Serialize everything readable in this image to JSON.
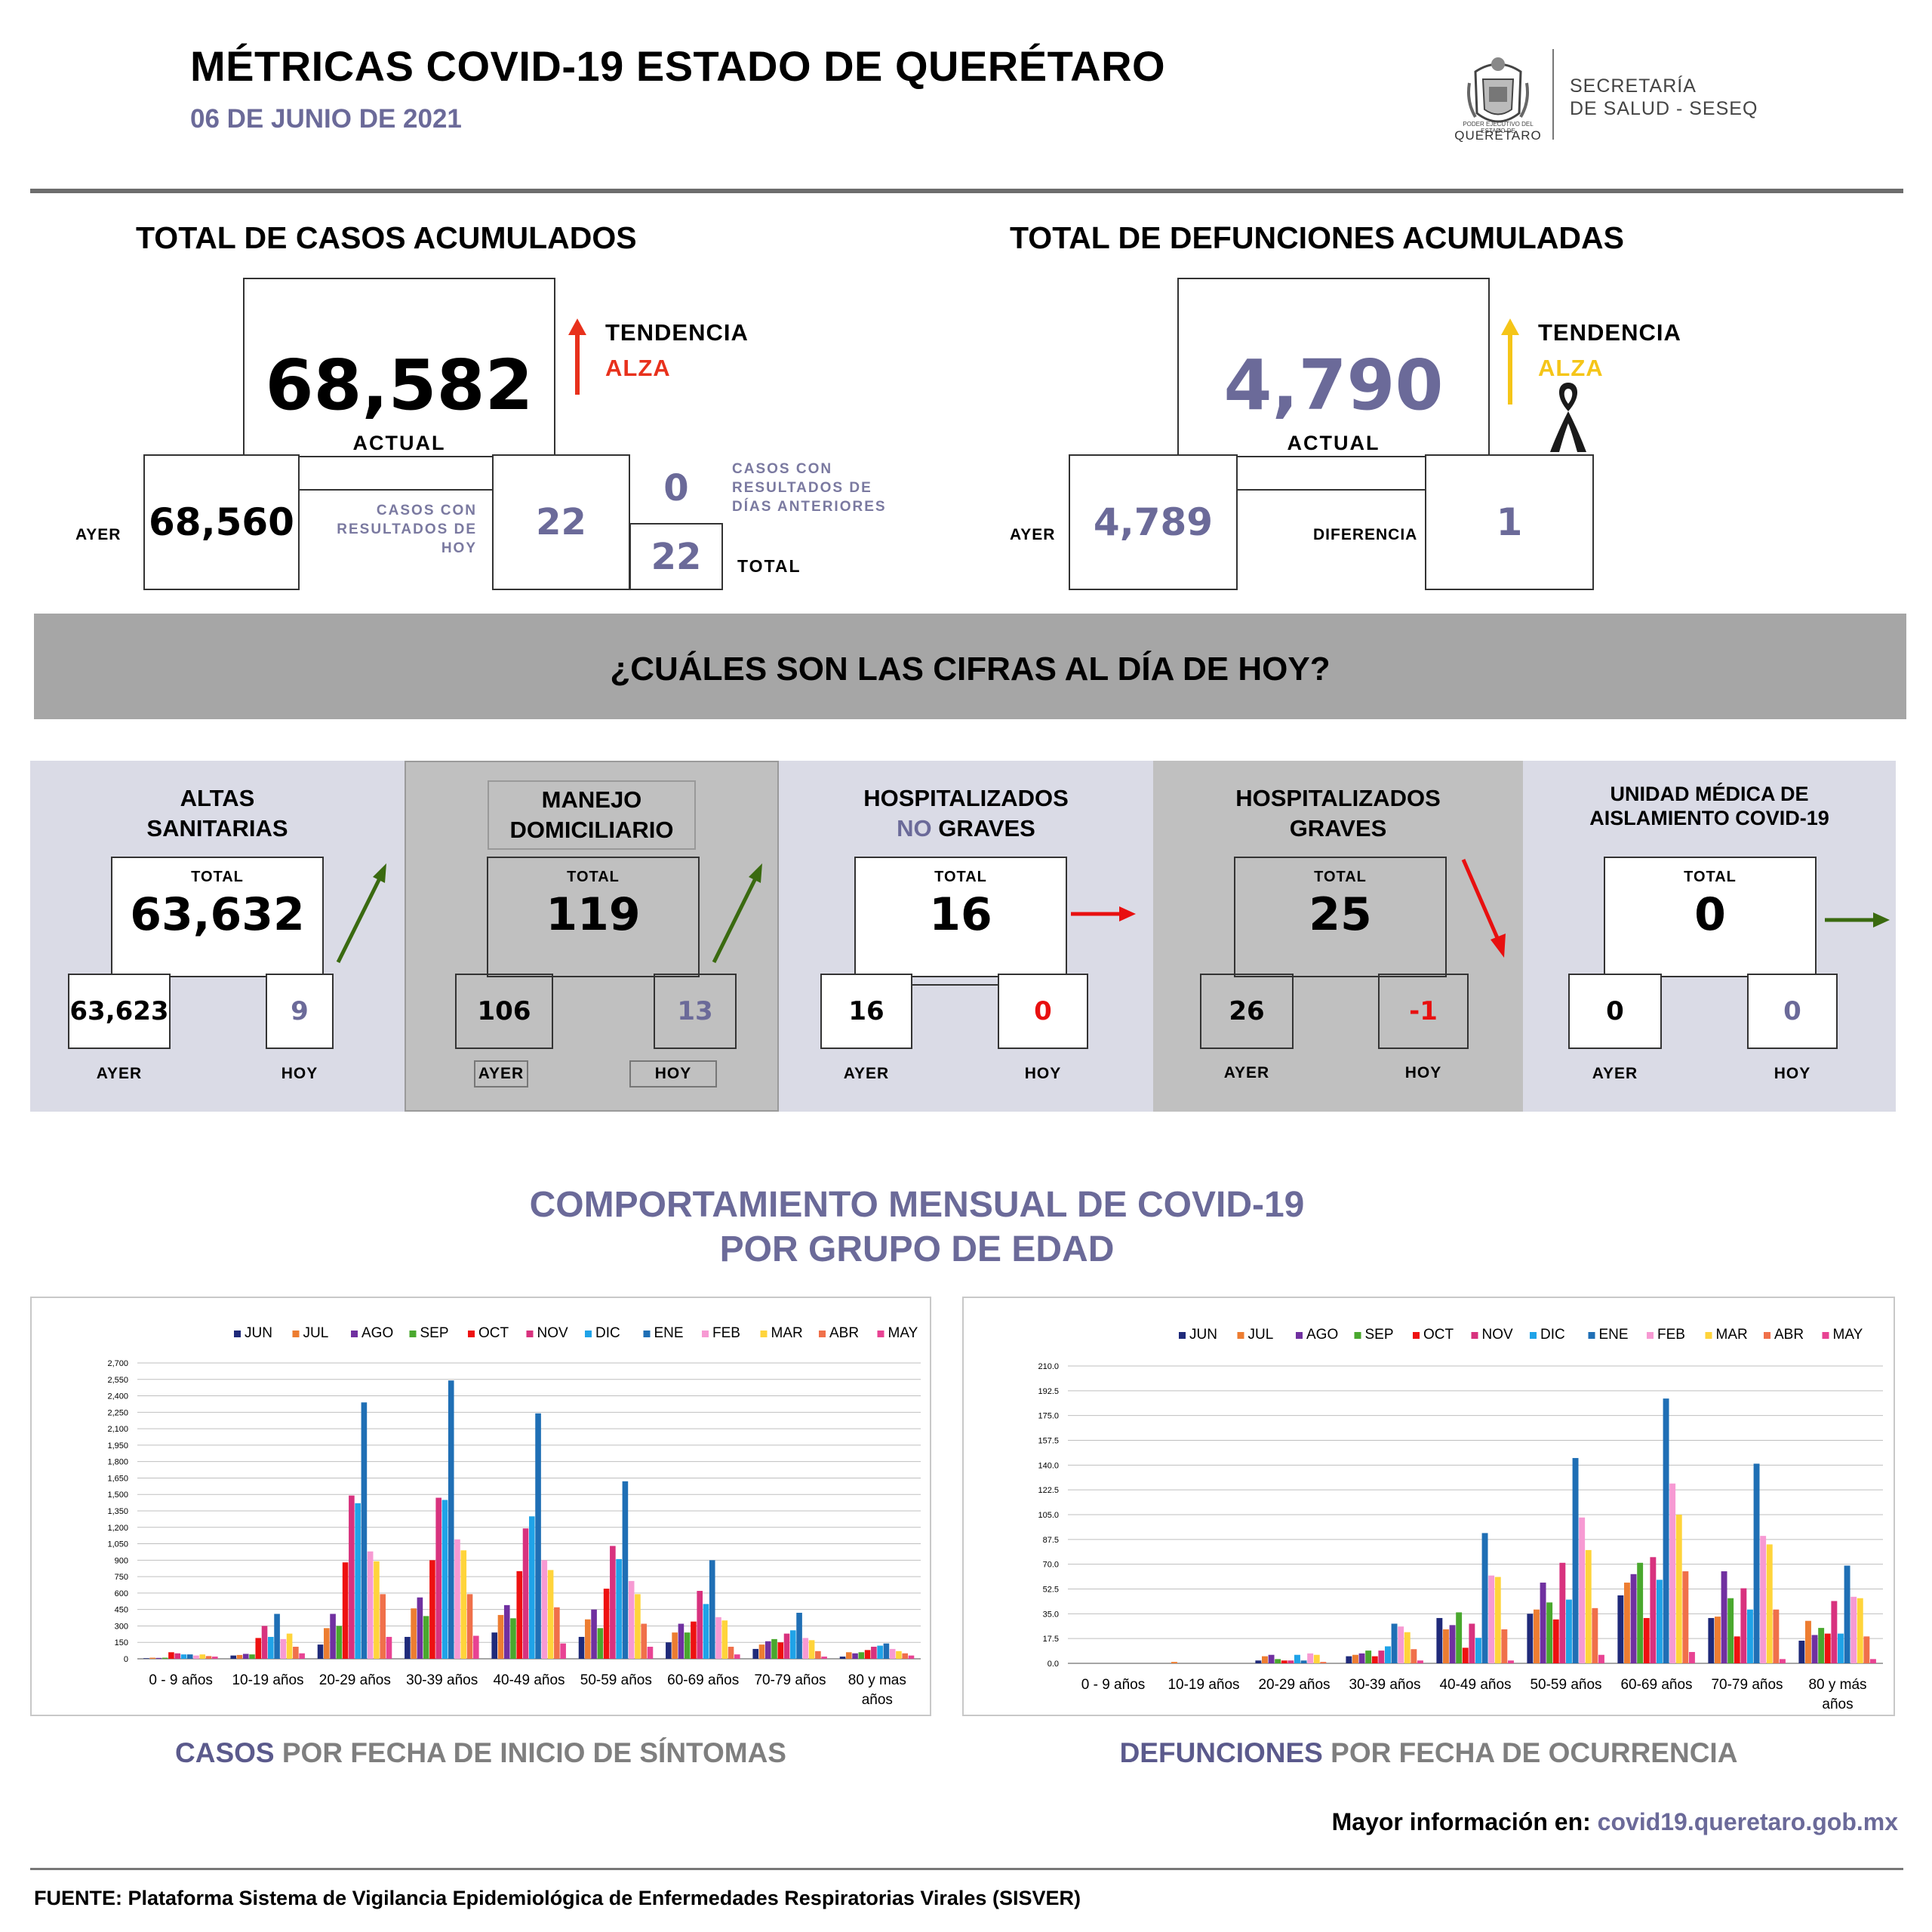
{
  "header": {
    "title": "MÉTRICAS COVID-19 ESTADO DE QUERÉTARO",
    "date": "06 DE JUNIO DE 2021",
    "logo_small": "PODER EJECUTIVO DEL ESTADO DE",
    "logo_state": "QUERÉTARO",
    "secretaria_line1": "SECRETARÍA",
    "secretaria_line2": "DE SALUD - SESEQ"
  },
  "casos": {
    "title": "TOTAL DE CASOS ACUMULADOS",
    "actual": "68,582",
    "actual_label": "ACTUAL",
    "tendencia_label": "TENDENCIA",
    "tendencia_value": "ALZA",
    "ayer_label": "AYER",
    "ayer": "68,560",
    "hoy_label": "CASOS CON RESULTADOS DE HOY",
    "hoy": "22",
    "anteriores_label": "CASOS CON RESULTADOS DE DÍAS ANTERIORES",
    "anteriores": "0",
    "total": "22",
    "total_label": "TOTAL",
    "trend_color": "#e8311c"
  },
  "defunciones": {
    "title": "TOTAL DE DEFUNCIONES ACUMULADAS",
    "actual": "4,790",
    "actual_label": "ACTUAL",
    "tendencia_label": "TENDENCIA",
    "tendencia_value": "ALZA",
    "ayer_label": "AYER",
    "ayer": "4,789",
    "diferencia_label": "DIFERENCIA",
    "diferencia": "1",
    "trend_color": "#f5c518"
  },
  "banner": "¿CUÁLES SON LAS CIFRAS AL DÍA DE HOY?",
  "panels": [
    {
      "title1": "ALTAS",
      "title2": "SANITARIAS",
      "total_label": "TOTAL",
      "total": "63,632",
      "ayer": "63,623",
      "hoy": "9",
      "ayer_label": "AYER",
      "hoy_label": "HOY"
    },
    {
      "title1": "MANEJO",
      "title2": "DOMICILIARIO",
      "total_label": "TOTAL",
      "total": "119",
      "ayer": "106",
      "hoy": "13",
      "ayer_label": "AYER",
      "hoy_label": "HOY"
    },
    {
      "title1": "HOSPITALIZADOS",
      "title2a": "NO",
      "title2b": " GRAVES",
      "total_label": "TOTAL",
      "total": "16",
      "ayer": "16",
      "hoy": "0",
      "ayer_label": "AYER",
      "hoy_label": "HOY"
    },
    {
      "title1": "HOSPITALIZADOS",
      "title2": "GRAVES",
      "total_label": "TOTAL",
      "total": "25",
      "ayer": "26",
      "hoy": "-1",
      "ayer_label": "AYER",
      "hoy_label": "HOY"
    },
    {
      "title1": "UNIDAD MÉDICA DE",
      "title2": "AISLAMIENTO COVID-19",
      "total_label": "TOTAL",
      "total": "0",
      "ayer": "0",
      "hoy": "0",
      "ayer_label": "AYER",
      "hoy_label": "HOY"
    }
  ],
  "section": {
    "title1": "COMPORTAMIENTO MENSUAL DE COVID-19",
    "title2": "POR GRUPO DE EDAD"
  },
  "captions": {
    "casos_a": "CASOS",
    "casos_b": " POR FECHA DE INICIO DE SÍNTOMAS",
    "def_a": "DEFUNCIONES",
    "def_b": " POR FECHA DE OCURRENCIA"
  },
  "more_info": {
    "label": "Mayor información en:",
    "url": "covid19.queretaro.gob.mx"
  },
  "fuente": "FUENTE: Plataforma Sistema  de Vigilancia Epidemiológica de Enfermedades Respiratorias Virales (SISVER)",
  "colors": {
    "series": [
      "#1f2a7a",
      "#ed7d31",
      "#7030a0",
      "#4aa82e",
      "#ee1111",
      "#d8327e",
      "#1fa3e8",
      "#1f6fb5",
      "#f79ad3",
      "#ffd43b",
      "#f0704a",
      "#e84393"
    ],
    "arrow_up": "#3a6a10",
    "arrow_red": "#e81010",
    "arrow_green": "#3a6a10"
  },
  "chart_data": [
    {
      "type": "bar",
      "title": "CASOS POR FECHA DE INICIO DE SÍNTOMAS",
      "categories": [
        "0 - 9 años",
        "10-19 años",
        "20-29 años",
        "30-39 años",
        "40-49 años",
        "50-59 años",
        "60-69 años",
        "70-79 años",
        "80 y mas años"
      ],
      "ylim": [
        0,
        2700
      ],
      "yticks": [
        "0",
        "150",
        "300",
        "450",
        "600",
        "750",
        "900",
        "1,050",
        "1,200",
        "1,350",
        "1,500",
        "1,650",
        "1,800",
        "1,950",
        "2,100",
        "2,250",
        "2,400",
        "2,550",
        "2,700"
      ],
      "series": [
        {
          "name": "JUN",
          "values": [
            5,
            30,
            130,
            200,
            240,
            200,
            150,
            90,
            20
          ]
        },
        {
          "name": "JUL",
          "values": [
            10,
            35,
            280,
            460,
            400,
            360,
            240,
            130,
            60
          ]
        },
        {
          "name": "AGO",
          "values": [
            8,
            45,
            410,
            560,
            490,
            450,
            320,
            160,
            50
          ]
        },
        {
          "name": "SEP",
          "values": [
            10,
            40,
            300,
            390,
            370,
            280,
            240,
            180,
            60
          ]
        },
        {
          "name": "OCT",
          "values": [
            60,
            190,
            880,
            900,
            800,
            640,
            340,
            150,
            80
          ]
        },
        {
          "name": "NOV",
          "values": [
            50,
            300,
            1490,
            1470,
            1190,
            1030,
            620,
            230,
            110
          ]
        },
        {
          "name": "DIC",
          "values": [
            40,
            200,
            1420,
            1450,
            1300,
            910,
            500,
            260,
            120
          ]
        },
        {
          "name": "ENE",
          "values": [
            40,
            410,
            2340,
            2540,
            2240,
            1620,
            900,
            420,
            140
          ]
        },
        {
          "name": "FEB",
          "values": [
            30,
            180,
            980,
            1090,
            900,
            710,
            380,
            190,
            90
          ]
        },
        {
          "name": "MAR",
          "values": [
            40,
            230,
            890,
            990,
            810,
            590,
            350,
            170,
            70
          ]
        },
        {
          "name": "ABR",
          "values": [
            25,
            110,
            590,
            590,
            470,
            320,
            110,
            70,
            50
          ]
        },
        {
          "name": "MAY",
          "values": [
            20,
            50,
            200,
            210,
            140,
            110,
            40,
            20,
            30
          ]
        }
      ]
    },
    {
      "type": "bar",
      "title": "DEFUNCIONES POR FECHA DE OCURRENCIA",
      "categories": [
        "0 - 9 años",
        "10-19 años",
        "20-29 años",
        "30-39 años",
        "40-49 años",
        "50-59 años",
        "60-69 años",
        "70-79 años",
        "80 y más años"
      ],
      "ylim": [
        0,
        210
      ],
      "yticks": [
        "0.0",
        "17.5",
        "35.0",
        "52.5",
        "70.0",
        "87.5",
        "105.0",
        "122.5",
        "140.0",
        "157.5",
        "175.0",
        "192.5",
        "210.0"
      ],
      "series": [
        {
          "name": "JUN",
          "values": [
            0,
            0,
            2,
            5,
            32,
            35,
            48,
            32,
            16
          ]
        },
        {
          "name": "JUL",
          "values": [
            0,
            1,
            5,
            6,
            24,
            38,
            57,
            33,
            30
          ]
        },
        {
          "name": "AGO",
          "values": [
            0,
            0,
            6,
            7,
            27,
            57,
            63,
            65,
            20
          ]
        },
        {
          "name": "SEP",
          "values": [
            0,
            0,
            3,
            9,
            36,
            43,
            71,
            46,
            25
          ]
        },
        {
          "name": "OCT",
          "values": [
            0,
            0,
            2,
            5,
            11,
            31,
            32,
            19,
            21
          ]
        },
        {
          "name": "NOV",
          "values": [
            0,
            0,
            2,
            9,
            28,
            71,
            75,
            53,
            44
          ]
        },
        {
          "name": "DIC",
          "values": [
            0,
            0,
            6,
            12,
            18,
            45,
            59,
            38,
            21
          ]
        },
        {
          "name": "ENE",
          "values": [
            0,
            0,
            2,
            28,
            92,
            145,
            187,
            141,
            69
          ]
        },
        {
          "name": "FEB",
          "values": [
            0,
            0,
            7,
            26,
            62,
            103,
            127,
            90,
            47
          ]
        },
        {
          "name": "MAR",
          "values": [
            0,
            0,
            6,
            22,
            61,
            80,
            105,
            84,
            46
          ]
        },
        {
          "name": "ABR",
          "values": [
            0,
            0,
            1,
            10,
            24,
            39,
            65,
            38,
            19
          ]
        },
        {
          "name": "MAY",
          "values": [
            0,
            0,
            0,
            2,
            2,
            6,
            8,
            3,
            3
          ]
        }
      ]
    }
  ]
}
